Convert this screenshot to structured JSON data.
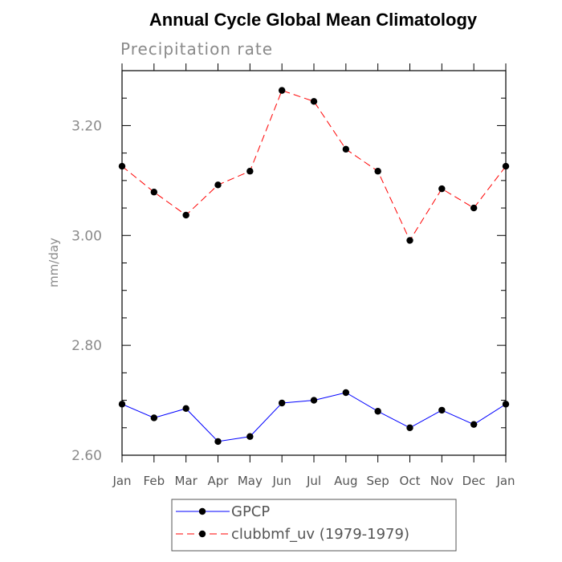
{
  "chart_data": {
    "type": "line",
    "title": "Annual Cycle Global Mean Climatology",
    "subtitle": "Precipitation rate",
    "ylabel": "mm/day",
    "xlabel": "",
    "categories": [
      "Jan",
      "Feb",
      "Mar",
      "Apr",
      "May",
      "Jun",
      "Jul",
      "Aug",
      "Sep",
      "Oct",
      "Nov",
      "Dec",
      "Jan"
    ],
    "ylim": [
      2.6,
      3.3
    ],
    "yticks": [
      2.6,
      2.8,
      3.0,
      3.2
    ],
    "ytick_labels": [
      "2.60",
      "2.80",
      "3.00",
      "3.20"
    ],
    "grid": false,
    "legend_position": "bottom",
    "series": [
      {
        "name": "GPCP",
        "color": "#0000ff",
        "dash": "solid",
        "values": [
          2.693,
          2.668,
          2.685,
          2.625,
          2.634,
          2.695,
          2.7,
          2.714,
          2.68,
          2.65,
          2.682,
          2.656,
          2.693
        ]
      },
      {
        "name": "clubbmf_uv (1979-1979)",
        "color": "#ff0000",
        "dash": "dashed",
        "values": [
          3.126,
          3.079,
          3.037,
          3.092,
          3.117,
          3.264,
          3.244,
          3.157,
          3.117,
          2.991,
          3.085,
          3.05,
          3.126
        ]
      }
    ]
  }
}
